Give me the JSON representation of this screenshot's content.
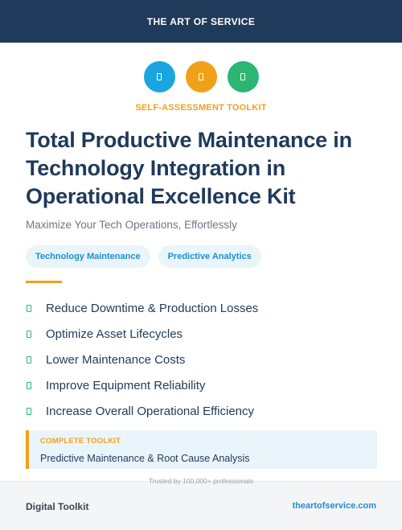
{
  "header": {
    "brand": "THE ART OF SERVICE"
  },
  "icons": [
    {
      "name": "document-icon",
      "color": "#1aa5df"
    },
    {
      "name": "document-icon",
      "color": "#f0a11a"
    },
    {
      "name": "document-icon",
      "color": "#2bb673"
    }
  ],
  "kicker": "SELF-ASSESSMENT TOOLKIT",
  "title": "Total Productive Maintenance in Technology Integration in Operational Excellence Kit",
  "subtitle": "Maximize Your Tech Operations, Effortlessly",
  "tags": [
    "Technology Maintenance",
    "Predictive Analytics"
  ],
  "benefits": [
    "Reduce Downtime & Production Losses",
    "Optimize Asset Lifecycles",
    "Lower Maintenance Costs",
    "Improve Equipment Reliability",
    "Increase Overall Operational Efficiency"
  ],
  "toolkit": {
    "label": "COMPLETE TOOLKIT",
    "description": "Predictive Maintenance & Root Cause Analysis"
  },
  "footer": {
    "trusted": "Trusted by 100,000+ professionals",
    "left": "Digital Toolkit",
    "right": "theartofservice.com"
  },
  "colors": {
    "navy": "#1f3a5a",
    "orange": "#f0a11a",
    "blue": "#1aa5df",
    "green": "#2bb673"
  }
}
